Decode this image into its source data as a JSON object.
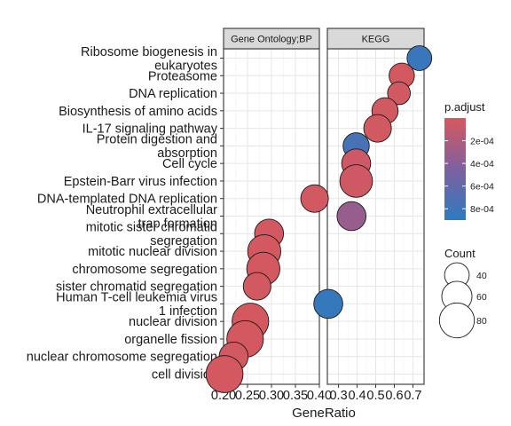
{
  "chart_data": {
    "type": "scatter",
    "xlabel": "GeneRatio",
    "panels": [
      {
        "name": "Gene Ontology;BP",
        "xlim": [
          0.2,
          0.4
        ],
        "xticks": [
          0.2,
          0.25,
          0.3,
          0.35,
          0.4
        ],
        "xtick_labels": [
          "0.20",
          "0.25",
          "0.30",
          "0.35",
          "0.40"
        ]
      },
      {
        "name": "KEGG",
        "xlim": [
          0.24,
          0.76
        ],
        "xticks": [
          0.3,
          0.4,
          0.5,
          0.6,
          0.7
        ],
        "xtick_labels": [
          "0.3",
          "0.4",
          "0.5",
          "0.6",
          "0.7"
        ]
      }
    ],
    "terms": [
      [
        "Ribosome biogenesis in",
        "eukaryotes"
      ],
      [
        "Proteasome"
      ],
      [
        "DNA replication"
      ],
      [
        "Biosynthesis of amino acids"
      ],
      [
        "IL-17 signaling pathway"
      ],
      [
        "Protein digestion and",
        "absorption"
      ],
      [
        "Cell cycle"
      ],
      [
        "Epstein-Barr virus infection"
      ],
      [
        "DNA-templated DNA replication"
      ],
      [
        "Neutrophil extracellular",
        "trap formation"
      ],
      [
        "mitotic sister chromatid",
        "segregation"
      ],
      [
        "mitotic nuclear division"
      ],
      [
        "chromosome segregation"
      ],
      [
        "sister chromatid segregation"
      ],
      [
        "Human T-cell leukemia virus",
        "1 infection"
      ],
      [
        "nuclear division"
      ],
      [
        "organelle fission"
      ],
      [
        "nuclear chromosome segregation"
      ],
      [
        "cell division"
      ]
    ],
    "points": [
      {
        "panel": 1,
        "term": 0,
        "x": 0.735,
        "count": 40,
        "p_adjust": 0.00083
      },
      {
        "panel": 1,
        "term": 1,
        "x": 0.64,
        "count": 42,
        "p_adjust": 1.2e-05
      },
      {
        "panel": 1,
        "term": 2,
        "x": 0.625,
        "count": 34,
        "p_adjust": 3e-05
      },
      {
        "panel": 1,
        "term": 3,
        "x": 0.55,
        "count": 45,
        "p_adjust": 3e-05
      },
      {
        "panel": 1,
        "term": 4,
        "x": 0.51,
        "count": 50,
        "p_adjust": 3e-05
      },
      {
        "panel": 1,
        "term": 5,
        "x": 0.395,
        "count": 45,
        "p_adjust": 0.00075
      },
      {
        "panel": 1,
        "term": 6,
        "x": 0.395,
        "count": 55,
        "p_adjust": 5e-05
      },
      {
        "panel": 1,
        "term": 7,
        "x": 0.395,
        "count": 70,
        "p_adjust": 4e-05
      },
      {
        "panel": 0,
        "term": 8,
        "x": 0.39,
        "count": 50,
        "p_adjust": 3e-05
      },
      {
        "panel": 1,
        "term": 9,
        "x": 0.37,
        "count": 55,
        "p_adjust": 0.00032
      },
      {
        "panel": 0,
        "term": 10,
        "x": 0.295,
        "count": 55,
        "p_adjust": 2e-05
      },
      {
        "panel": 0,
        "term": 11,
        "x": 0.285,
        "count": 72,
        "p_adjust": 1e-05
      },
      {
        "panel": 0,
        "term": 12,
        "x": 0.283,
        "count": 72,
        "p_adjust": 1e-05
      },
      {
        "panel": 0,
        "term": 13,
        "x": 0.27,
        "count": 50,
        "p_adjust": 3e-05
      },
      {
        "panel": 1,
        "term": 14,
        "x": 0.245,
        "count": 55,
        "p_adjust": 0.00085
      },
      {
        "panel": 0,
        "term": 15,
        "x": 0.256,
        "count": 88,
        "p_adjust": 1e-05
      },
      {
        "panel": 0,
        "term": 16,
        "x": 0.245,
        "count": 88,
        "p_adjust": 1e-05
      },
      {
        "panel": 0,
        "term": 17,
        "x": 0.221,
        "count": 55,
        "p_adjust": 3e-05
      },
      {
        "panel": 0,
        "term": 18,
        "x": 0.202,
        "count": 90,
        "p_adjust": 1e-05
      }
    ],
    "color_legend": {
      "title": "p.adjust",
      "range": [
        0,
        0.0009
      ],
      "low_color": "#d6585e",
      "high_color": "#2c7bbf",
      "ticks": [
        0.0002,
        0.0004,
        0.0006,
        0.0008
      ],
      "tick_labels": [
        "2e-04",
        "4e-04",
        "6e-04",
        "8e-04"
      ]
    },
    "size_legend": {
      "title": "Count",
      "values": [
        40,
        60,
        80
      ],
      "labels": [
        "40",
        "60",
        "80"
      ]
    },
    "grid": true,
    "legend_position": "right"
  }
}
